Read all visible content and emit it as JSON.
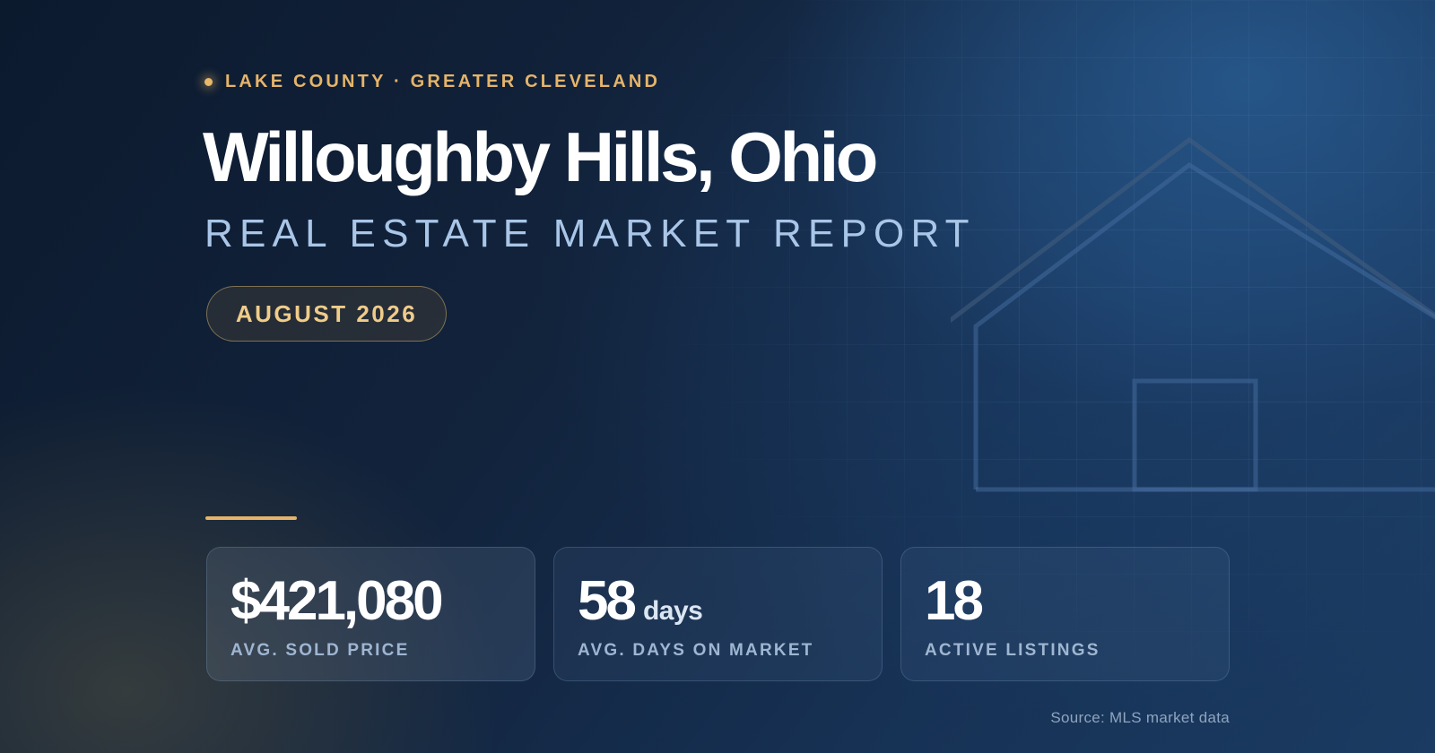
{
  "header": {
    "eyebrow": "LAKE COUNTY · GREATER CLEVELAND",
    "title": "Willoughby Hills, Ohio",
    "subtitle": "REAL ESTATE MARKET REPORT",
    "date_badge": "AUGUST 2026"
  },
  "stats": [
    {
      "value": "$421,080",
      "unit": "",
      "label": "AVG. SOLD PRICE"
    },
    {
      "value": "58",
      "unit": "days",
      "label": "AVG. DAYS ON MARKET"
    },
    {
      "value": "18",
      "unit": "",
      "label": "ACTIVE LISTINGS"
    }
  ],
  "footer": {
    "source": "Source: MLS market data"
  },
  "colors": {
    "accent_gold": "#e5b46a",
    "background_navy": "#0f1f35",
    "subtitle_blue": "#a9c6e8"
  },
  "icons": {
    "background_illustration": "house-outline-icon",
    "eyebrow_marker": "dot-icon"
  }
}
